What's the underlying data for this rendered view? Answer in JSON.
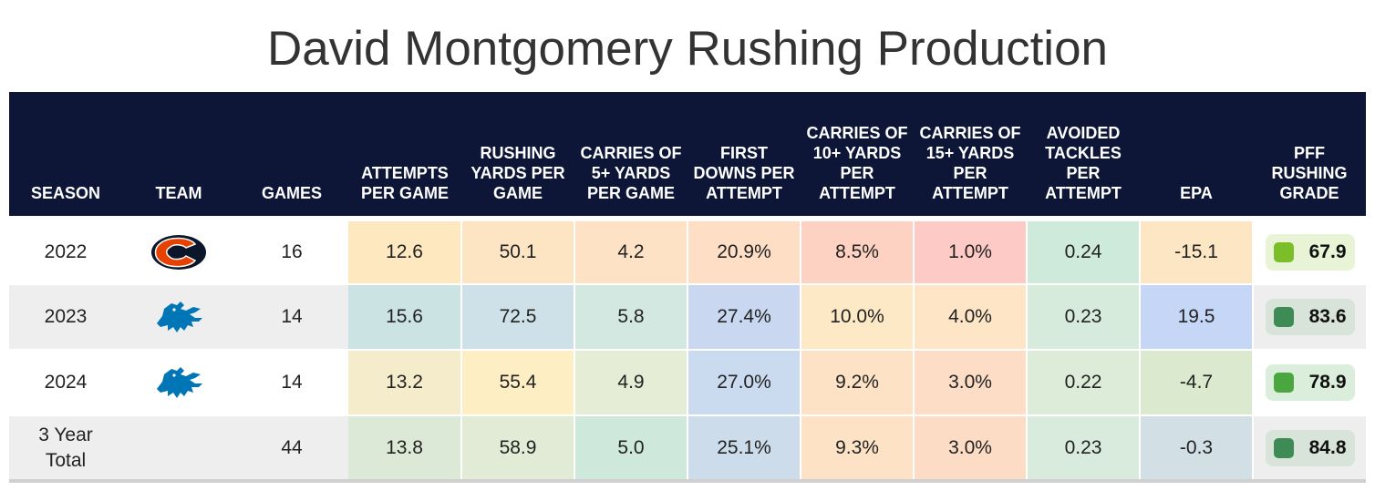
{
  "title": "David Montgomery Rushing Production",
  "columns": [
    "SEASON",
    "TEAM",
    "GAMES",
    "ATTEMPTS PER GAME",
    "RUSHING YARDS PER GAME",
    "CARRIES OF 5+ YARDS PER GAME",
    "FIRST DOWNS PER ATTEMPT",
    "CARRIES OF 10+ YARDS PER ATTEMPT",
    "CARRIES OF 15+ YARDS PER ATTEMPT",
    "AVOIDED TACKLES PER ATTEMPT",
    "EPA",
    "PFF RUSHING GRADE"
  ],
  "rows": [
    {
      "season": "2022",
      "team_icon": "bears-logo-icon",
      "games": "16",
      "values": [
        "12.6",
        "50.1",
        "4.2",
        "20.9%",
        "8.5%",
        "1.0%",
        "0.24",
        "-15.1"
      ],
      "colors": [
        "#fde8c0",
        "#fde5c3",
        "#fde2c6",
        "#fedfc6",
        "#fdd2c2",
        "#fdcac6",
        "#cdeadb",
        "#fde6c3"
      ],
      "grade": "67.9",
      "grade_color": "#7bbe2a",
      "grade_bg": "#e8f4d5"
    },
    {
      "season": "2023",
      "team_icon": "lions-logo-icon",
      "games": "14",
      "values": [
        "15.6",
        "72.5",
        "5.8",
        "27.4%",
        "10.0%",
        "4.0%",
        "0.23",
        "19.5"
      ],
      "colors": [
        "#cce3e4",
        "#cfe1e8",
        "#d2e8e0",
        "#c9d8f0",
        "#fde9c6",
        "#fde5c6",
        "#d7ebdd",
        "#c6d6f6"
      ],
      "grade": "83.6",
      "grade_color": "#3f8b55",
      "grade_bg": "#d8e3d9"
    },
    {
      "season": "2024",
      "team_icon": "lions-logo-icon",
      "games": "14",
      "values": [
        "13.2",
        "55.4",
        "4.9",
        "27.0%",
        "9.2%",
        "3.0%",
        "0.22",
        "-4.7"
      ],
      "colors": [
        "#f4ecca",
        "#fdeec3",
        "#e6edd6",
        "#cadbf0",
        "#fde2c6",
        "#fdddc6",
        "#dcecd9",
        "#dbeace"
      ],
      "grade": "78.9",
      "grade_color": "#4aa63e",
      "grade_bg": "#dbeedb"
    },
    {
      "season": "3 Year Total",
      "team_icon": "",
      "games": "44",
      "values": [
        "13.8",
        "58.9",
        "5.0",
        "25.1%",
        "9.3%",
        "3.0%",
        "0.23",
        "-0.3"
      ],
      "colors": [
        "#dde9d7",
        "#e1ebd6",
        "#cfe8dc",
        "#cddcea",
        "#fde2c6",
        "#fddcc6",
        "#d8ebdc",
        "#d2e0e6"
      ],
      "grade": "84.8",
      "grade_color": "#3f8b55",
      "grade_bg": "#d8e3d9"
    }
  ],
  "chart_data": {
    "type": "table",
    "title": "David Montgomery Rushing Production",
    "columns": [
      "SEASON",
      "TEAM",
      "GAMES",
      "ATTEMPTS PER GAME",
      "RUSHING YARDS PER GAME",
      "CARRIES OF 5+ YARDS PER GAME",
      "FIRST DOWNS PER ATTEMPT",
      "CARRIES OF 10+ YARDS PER ATTEMPT",
      "CARRIES OF 15+ YARDS PER ATTEMPT",
      "AVOIDED TACKLES PER ATTEMPT",
      "EPA",
      "PFF RUSHING GRADE"
    ],
    "rows": [
      [
        "2022",
        "bears-logo-icon",
        16,
        12.6,
        50.1,
        4.2,
        "20.9%",
        "8.5%",
        "1.0%",
        0.24,
        -15.1,
        67.9
      ],
      [
        "2023",
        "lions-logo-icon",
        14,
        15.6,
        72.5,
        5.8,
        "27.4%",
        "10.0%",
        "4.0%",
        0.23,
        19.5,
        83.6
      ],
      [
        "2024",
        "lions-logo-icon",
        14,
        13.2,
        55.4,
        4.9,
        "27.0%",
        "9.2%",
        "3.0%",
        0.22,
        -4.7,
        78.9
      ],
      [
        "3 Year Total",
        "",
        44,
        13.8,
        58.9,
        5.0,
        "25.1%",
        "9.3%",
        "3.0%",
        0.23,
        -0.3,
        84.8
      ]
    ]
  }
}
